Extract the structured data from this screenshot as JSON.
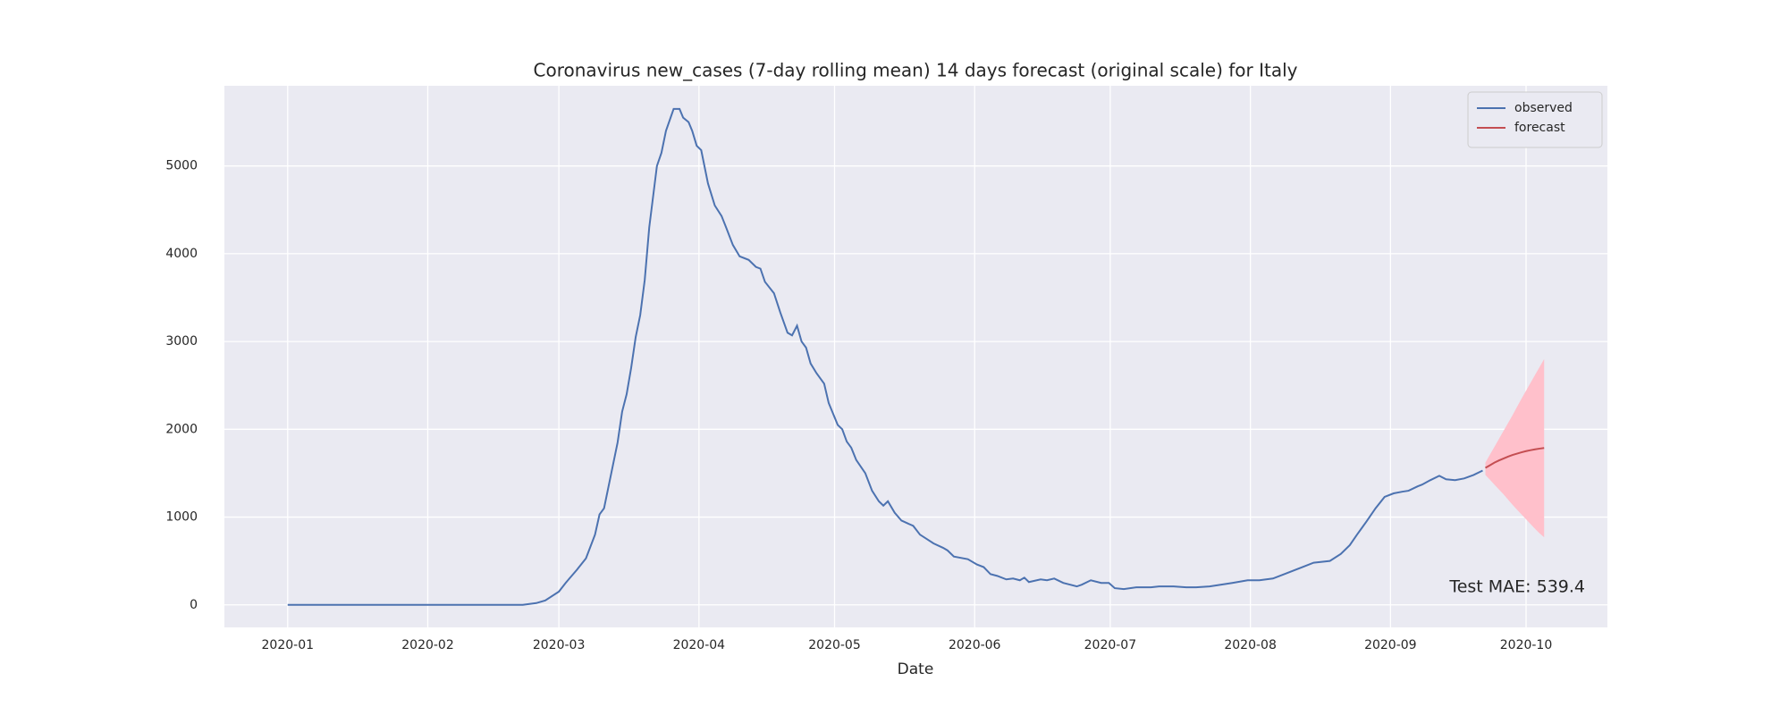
{
  "chart_data": {
    "type": "line",
    "title": "Coronavirus new_cases (7-day rolling mean) 14 days forecast (original scale) for Italy",
    "xlabel": "Date",
    "annotation": "Test MAE: 539.4",
    "xlim": [
      -14,
      292
    ],
    "xticks": [
      {
        "value": 0,
        "label": "2020-01"
      },
      {
        "value": 31,
        "label": "2020-02"
      },
      {
        "value": 60,
        "label": "2020-03"
      },
      {
        "value": 91,
        "label": "2020-04"
      },
      {
        "value": 121,
        "label": "2020-05"
      },
      {
        "value": 152,
        "label": "2020-06"
      },
      {
        "value": 182,
        "label": "2020-07"
      },
      {
        "value": 213,
        "label": "2020-08"
      },
      {
        "value": 244,
        "label": "2020-09"
      },
      {
        "value": 274,
        "label": "2020-10"
      }
    ],
    "ylim": [
      -257,
      5913
    ],
    "yticks": [
      0,
      1000,
      2000,
      3000,
      4000,
      5000
    ],
    "grid": true,
    "legend": "upper right",
    "band_color": "#ffc0cb",
    "series": [
      {
        "name": "observed",
        "color": "#4c72b0",
        "x": [
          0,
          52,
          55,
          57,
          60,
          61.5,
          64,
          66,
          68,
          69,
          70,
          71.6,
          73,
          74,
          75,
          76,
          77,
          78,
          79,
          80,
          81.7,
          82.7,
          83.7,
          85.4,
          86.7,
          87.5,
          88.7,
          89.5,
          90.5,
          91.5,
          93,
          94.5,
          96,
          97,
          98.5,
          100,
          102,
          103.6,
          104.6,
          105.6,
          107.6,
          109,
          110.6,
          111.6,
          112.7,
          113.7,
          114.7,
          115.7,
          117,
          118.7,
          119.7,
          121.7,
          122.7,
          123.7,
          124.7,
          125.8,
          127.8,
          129.3,
          130.8,
          131.8,
          132.8,
          134.3,
          135.8,
          138.4,
          139.9,
          141.4,
          142.9,
          145,
          146,
          147.4,
          150.5,
          152.5,
          154,
          155.5,
          157,
          159,
          160.5,
          162,
          163,
          164,
          166.6,
          168,
          169.6,
          171.6,
          174.6,
          175.7,
          177.7,
          180,
          181.7,
          183,
          185,
          187.8,
          191,
          192.8,
          196,
          198.8,
          201,
          204,
          209,
          212.4,
          215,
          218,
          221,
          224.5,
          227,
          230.6,
          233,
          235,
          236.6,
          238.7,
          240.7,
          242.7,
          244.7,
          246.7,
          248,
          250,
          251,
          252.8,
          254.8,
          256.3,
          258.3,
          260.3,
          262.4,
          264.4
        ],
        "values": [
          0,
          0,
          20,
          50,
          150,
          250,
          400,
          530,
          800,
          1030,
          1100,
          1500,
          1850,
          2200,
          2400,
          2700,
          3050,
          3300,
          3700,
          4300,
          5000,
          5150,
          5400,
          5650,
          5650,
          5550,
          5500,
          5400,
          5230,
          5180,
          4800,
          4550,
          4430,
          4300,
          4100,
          3970,
          3930,
          3850,
          3830,
          3680,
          3550,
          3330,
          3100,
          3070,
          3180,
          3000,
          2930,
          2750,
          2640,
          2520,
          2300,
          2050,
          2000,
          1860,
          1790,
          1650,
          1500,
          1300,
          1180,
          1130,
          1180,
          1050,
          960,
          900,
          800,
          750,
          700,
          650,
          620,
          550,
          520,
          460,
          430,
          350,
          330,
          290,
          300,
          280,
          310,
          260,
          290,
          280,
          300,
          250,
          210,
          230,
          280,
          250,
          250,
          190,
          180,
          200,
          200,
          210,
          210,
          200,
          200,
          210,
          250,
          280,
          280,
          300,
          360,
          430,
          480,
          500,
          580,
          680,
          800,
          950,
          1100,
          1230,
          1270,
          1290,
          1300,
          1350,
          1370,
          1420,
          1470,
          1430,
          1420,
          1440,
          1480,
          1530
        ]
      },
      {
        "name": "forecast",
        "color": "#c44e52",
        "x": [
          265,
          266,
          267,
          268,
          269,
          270,
          271,
          272,
          273,
          274,
          275,
          276,
          277,
          278
        ],
        "values": [
          1560,
          1590,
          1620,
          1645,
          1667,
          1688,
          1707,
          1723,
          1738,
          1751,
          1762,
          1772,
          1780,
          1787
        ],
        "lower": [
          1480,
          1425,
          1370,
          1315,
          1260,
          1200,
          1140,
          1085,
          1030,
          975,
          920,
          865,
          815,
          770
        ],
        "upper": [
          1620,
          1710,
          1800,
          1890,
          1980,
          2070,
          2160,
          2255,
          2350,
          2440,
          2530,
          2620,
          2710,
          2800
        ]
      }
    ]
  }
}
